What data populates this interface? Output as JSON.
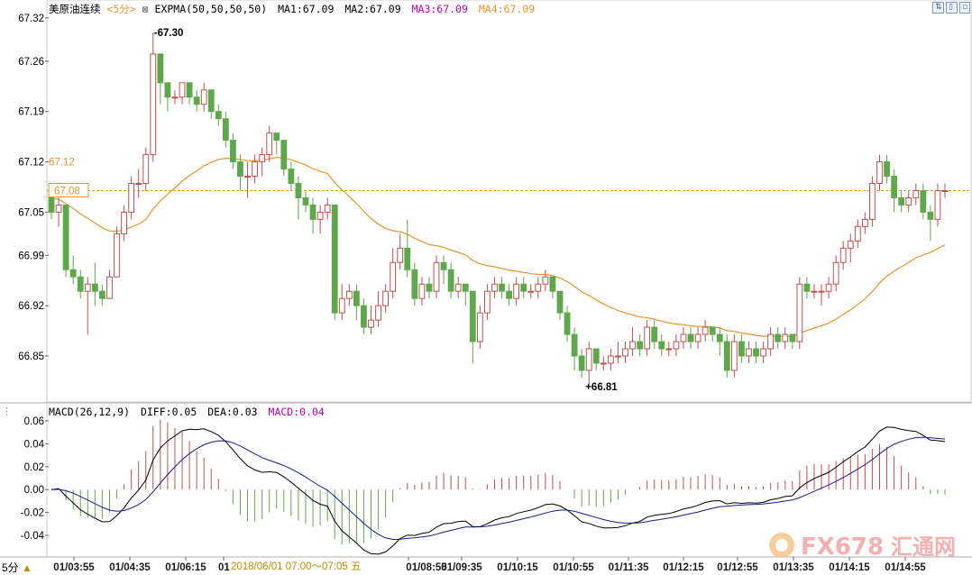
{
  "header": {
    "symbol": "美原油连续",
    "period_tag": "<5分>",
    "indicator": "EXPMA(50,50,50,50)",
    "ma1": "MA1:67.09",
    "ma2": "MA2:67.09",
    "ma3": "MA3:67.09",
    "ma4": "MA4:67.09"
  },
  "macd_header": {
    "label": "MACD(26,12,9)",
    "diff": "DIFF:0.05",
    "dea": "DEA:0.03",
    "macd": "MACD:0.04"
  },
  "colors": {
    "up": "#c0504d",
    "down": "#5da84a",
    "ma": "#e6962a",
    "ref_line": "#e6962a",
    "diff_line": "#000000",
    "dea_line": "#1a1a8c",
    "macd_pos": "#c0504d",
    "macd_neg": "#5da84a",
    "macd_label": "#c000c0",
    "ma3_label": "#c000c0",
    "ma4_label": "#e6962a"
  },
  "footer": {
    "period": "5分",
    "arrow": "▲",
    "date_range": "2018/06/01 07:00～07:05 五"
  },
  "watermark": {
    "text": "FX678",
    "text2": "汇通网"
  },
  "chart_data": {
    "type": "candlestick",
    "price_axis": {
      "ticks": [
        "67.32",
        "67.26",
        "67.19",
        "67.12",
        "67.05",
        "66.99",
        "66.92",
        "66.85"
      ],
      "ylim": [
        66.8,
        67.33
      ]
    },
    "macd_axis": {
      "ticks": [
        "0.06",
        "0.04",
        "0.02",
        "0.00",
        "-0.02",
        "-0.04"
      ],
      "ylim": [
        -0.06,
        0.06
      ]
    },
    "x_labels": [
      "01/03:55",
      "01/04:35",
      "01/06:15",
      "01",
      "01/08:55",
      "01/09:35",
      "01/10:15",
      "01/10:55",
      "01/11:35",
      "01/12:15",
      "01/12:55",
      "01/13:35",
      "01/14:15",
      "01/14:55"
    ],
    "annotations": {
      "high": "67.30",
      "low": "66.81",
      "ma_value": "67.12",
      "ref_value": "67.08"
    },
    "candles": [
      [
        67.07,
        67.05,
        67.08,
        67.04
      ],
      [
        67.05,
        67.06,
        67.07,
        67.03
      ],
      [
        67.06,
        66.97,
        67.06,
        66.96
      ],
      [
        66.97,
        66.96,
        66.99,
        66.95
      ],
      [
        66.96,
        66.94,
        66.97,
        66.93
      ],
      [
        66.94,
        66.95,
        66.96,
        66.88
      ],
      [
        66.95,
        66.94,
        66.98,
        66.92
      ],
      [
        66.94,
        66.93,
        66.95,
        66.92
      ],
      [
        66.93,
        66.96,
        66.97,
        66.93
      ],
      [
        66.96,
        67.02,
        67.03,
        66.96
      ],
      [
        67.02,
        67.05,
        67.06,
        67.01
      ],
      [
        67.05,
        67.09,
        67.1,
        67.04
      ],
      [
        67.09,
        67.09,
        67.11,
        67.07
      ],
      [
        67.09,
        67.13,
        67.14,
        67.08
      ],
      [
        67.13,
        67.27,
        67.3,
        67.12
      ],
      [
        67.27,
        67.23,
        67.27,
        67.2
      ],
      [
        67.23,
        67.21,
        67.23,
        67.19
      ],
      [
        67.21,
        67.21,
        67.22,
        67.2
      ],
      [
        67.21,
        67.23,
        67.23,
        67.2
      ],
      [
        67.23,
        67.21,
        67.23,
        67.2
      ],
      [
        67.21,
        67.2,
        67.22,
        67.19
      ],
      [
        67.2,
        67.22,
        67.23,
        67.19
      ],
      [
        67.22,
        67.19,
        67.22,
        67.18
      ],
      [
        67.19,
        67.18,
        67.2,
        67.17
      ],
      [
        67.18,
        67.15,
        67.19,
        67.14
      ],
      [
        67.15,
        67.12,
        67.16,
        67.11
      ],
      [
        67.12,
        67.1,
        67.13,
        67.08
      ],
      [
        67.1,
        67.1,
        67.12,
        67.07
      ],
      [
        67.1,
        67.12,
        67.13,
        67.09
      ],
      [
        67.12,
        67.13,
        67.14,
        67.1
      ],
      [
        67.13,
        67.16,
        67.17,
        67.12
      ],
      [
        67.16,
        67.15,
        67.16,
        67.13
      ],
      [
        67.15,
        67.11,
        67.15,
        67.1
      ],
      [
        67.11,
        67.09,
        67.12,
        67.08
      ],
      [
        67.09,
        67.07,
        67.1,
        67.04
      ],
      [
        67.07,
        67.06,
        67.08,
        67.05
      ],
      [
        67.06,
        67.04,
        67.07,
        67.02
      ],
      [
        67.04,
        67.05,
        67.06,
        67.02
      ],
      [
        67.05,
        67.06,
        67.07,
        67.04
      ],
      [
        67.06,
        66.91,
        67.06,
        66.9
      ],
      [
        66.91,
        66.93,
        66.95,
        66.9
      ],
      [
        66.93,
        66.94,
        66.95,
        66.92
      ],
      [
        66.94,
        66.92,
        66.95,
        66.9
      ],
      [
        66.92,
        66.89,
        66.93,
        66.88
      ],
      [
        66.89,
        66.9,
        66.92,
        66.88
      ],
      [
        66.9,
        66.92,
        66.94,
        66.89
      ],
      [
        66.92,
        66.94,
        66.95,
        66.91
      ],
      [
        66.94,
        66.98,
        67.0,
        66.93
      ],
      [
        66.98,
        67.0,
        67.02,
        66.97
      ],
      [
        67.0,
        66.97,
        67.04,
        66.96
      ],
      [
        66.97,
        66.93,
        66.98,
        66.92
      ],
      [
        66.93,
        66.95,
        66.96,
        66.92
      ],
      [
        66.95,
        66.94,
        66.96,
        66.93
      ],
      [
        66.94,
        66.98,
        66.99,
        66.93
      ],
      [
        66.98,
        66.97,
        66.99,
        66.95
      ],
      [
        66.97,
        66.94,
        66.98,
        66.93
      ],
      [
        66.94,
        66.95,
        66.96,
        66.93
      ],
      [
        66.95,
        66.94,
        66.95,
        66.92
      ],
      [
        66.94,
        66.87,
        66.94,
        66.84
      ],
      [
        66.87,
        66.91,
        66.92,
        66.86
      ],
      [
        66.91,
        66.94,
        66.95,
        66.9
      ],
      [
        66.94,
        66.95,
        66.96,
        66.93
      ],
      [
        66.95,
        66.94,
        66.96,
        66.93
      ],
      [
        66.94,
        66.93,
        66.95,
        66.92
      ],
      [
        66.93,
        66.95,
        66.96,
        66.92
      ],
      [
        66.95,
        66.94,
        66.96,
        66.93
      ],
      [
        66.94,
        66.94,
        66.95,
        66.93
      ],
      [
        66.94,
        66.95,
        66.96,
        66.93
      ],
      [
        66.95,
        66.96,
        66.97,
        66.94
      ],
      [
        66.96,
        66.94,
        66.96,
        66.93
      ],
      [
        66.94,
        66.91,
        66.94,
        66.9
      ],
      [
        66.91,
        66.88,
        66.92,
        66.87
      ],
      [
        66.88,
        66.85,
        66.89,
        66.83
      ],
      [
        66.85,
        66.83,
        66.86,
        66.82
      ],
      [
        66.83,
        66.86,
        66.87,
        66.81
      ],
      [
        66.86,
        66.84,
        66.86,
        66.83
      ],
      [
        66.84,
        66.84,
        66.85,
        66.83
      ],
      [
        66.84,
        66.85,
        66.86,
        66.83
      ],
      [
        66.85,
        66.85,
        66.87,
        66.84
      ],
      [
        66.85,
        66.86,
        66.87,
        66.84
      ],
      [
        66.86,
        66.87,
        66.89,
        66.85
      ],
      [
        66.87,
        66.86,
        66.88,
        66.85
      ],
      [
        66.86,
        66.89,
        66.9,
        66.85
      ],
      [
        66.89,
        66.87,
        66.9,
        66.86
      ],
      [
        66.87,
        66.86,
        66.88,
        66.85
      ],
      [
        66.86,
        66.86,
        66.87,
        66.85
      ],
      [
        66.86,
        66.87,
        66.88,
        66.85
      ],
      [
        66.87,
        66.88,
        66.89,
        66.86
      ],
      [
        66.88,
        66.87,
        66.89,
        66.86
      ],
      [
        66.87,
        66.88,
        66.89,
        66.86
      ],
      [
        66.88,
        66.89,
        66.9,
        66.87
      ],
      [
        66.89,
        66.88,
        66.89,
        66.87
      ],
      [
        66.88,
        66.87,
        66.89,
        66.85
      ],
      [
        66.87,
        66.83,
        66.88,
        66.82
      ],
      [
        66.83,
        66.87,
        66.88,
        66.82
      ],
      [
        66.87,
        66.85,
        66.88,
        66.84
      ],
      [
        66.85,
        66.86,
        66.87,
        66.84
      ],
      [
        66.86,
        66.85,
        66.87,
        66.84
      ],
      [
        66.85,
        66.86,
        66.87,
        66.84
      ],
      [
        66.86,
        66.88,
        66.89,
        66.85
      ],
      [
        66.88,
        66.87,
        66.89,
        66.86
      ],
      [
        66.87,
        66.88,
        66.89,
        66.86
      ],
      [
        66.88,
        66.87,
        66.88,
        66.86
      ],
      [
        66.87,
        66.95,
        66.96,
        66.86
      ],
      [
        66.95,
        66.94,
        66.96,
        66.93
      ],
      [
        66.94,
        66.94,
        66.95,
        66.93
      ],
      [
        66.94,
        66.94,
        66.95,
        66.92
      ],
      [
        66.94,
        66.95,
        66.96,
        66.93
      ],
      [
        66.95,
        66.98,
        66.99,
        66.94
      ],
      [
        66.98,
        67.0,
        67.01,
        66.97
      ],
      [
        67.0,
        67.01,
        67.02,
        66.98
      ],
      [
        67.01,
        67.03,
        67.04,
        67.0
      ],
      [
        67.03,
        67.04,
        67.05,
        67.02
      ],
      [
        67.04,
        67.09,
        67.1,
        67.03
      ],
      [
        67.09,
        67.12,
        67.13,
        67.08
      ],
      [
        67.12,
        67.1,
        67.13,
        67.09
      ],
      [
        67.1,
        67.07,
        67.11,
        67.05
      ],
      [
        67.07,
        67.06,
        67.08,
        67.05
      ],
      [
        67.06,
        67.07,
        67.08,
        67.05
      ],
      [
        67.07,
        67.08,
        67.09,
        67.06
      ],
      [
        67.08,
        67.05,
        67.09,
        67.04
      ],
      [
        67.05,
        67.04,
        67.06,
        67.01
      ],
      [
        67.04,
        67.08,
        67.09,
        67.03
      ],
      [
        67.08,
        67.08,
        67.09,
        67.07
      ]
    ]
  }
}
